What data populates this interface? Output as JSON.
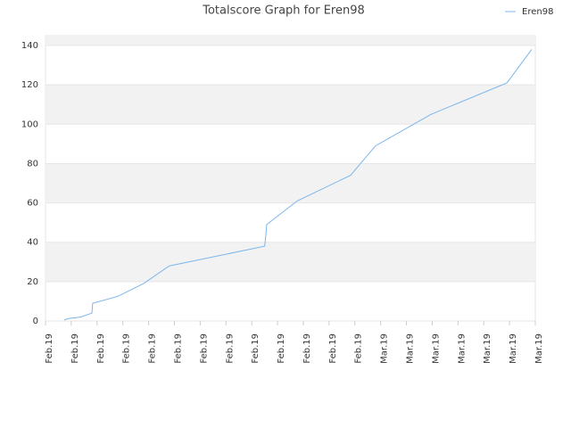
{
  "chart_data": {
    "type": "line",
    "title": "Totalscore Graph for Eren98",
    "x": [
      0.73,
      0.87,
      1.35,
      1.8,
      1.83,
      2.8,
      3.8,
      4.8,
      8.5,
      8.55,
      8.58,
      9.76,
      11.83,
      12.8,
      14.95,
      17.9,
      18.86
    ],
    "series": [
      {
        "name": "Eren98",
        "color": "#7cb5ec",
        "values": [
          0.5,
          1.2,
          2,
          4,
          9,
          12.5,
          19,
          28,
          38,
          44,
          49,
          61,
          74,
          89,
          105,
          121,
          138
        ]
      }
    ],
    "xlim": [
      0,
      19
    ],
    "xticks": [
      {
        "value": 0,
        "label": "Feb.19"
      },
      {
        "value": 1,
        "label": "Feb.19"
      },
      {
        "value": 2,
        "label": "Feb.19"
      },
      {
        "value": 3,
        "label": "Feb.19"
      },
      {
        "value": 4,
        "label": "Feb.19"
      },
      {
        "value": 5,
        "label": "Feb.19"
      },
      {
        "value": 6,
        "label": "Feb.19"
      },
      {
        "value": 7,
        "label": "Feb.19"
      },
      {
        "value": 8,
        "label": "Feb.19"
      },
      {
        "value": 9,
        "label": "Feb.19"
      },
      {
        "value": 10,
        "label": "Feb.19"
      },
      {
        "value": 11,
        "label": "Feb.19"
      },
      {
        "value": 12,
        "label": "Feb.19"
      },
      {
        "value": 13,
        "label": "Mar.19"
      },
      {
        "value": 14,
        "label": "Mar.19"
      },
      {
        "value": 15,
        "label": "Mar.19"
      },
      {
        "value": 16,
        "label": "Mar.19"
      },
      {
        "value": 17,
        "label": "Mar.19"
      },
      {
        "value": 18,
        "label": "Mar.19"
      },
      {
        "value": 19,
        "label": "Mar.19"
      }
    ],
    "ylim": [
      0,
      145
    ],
    "yticks": [
      0,
      20,
      40,
      60,
      80,
      100,
      120,
      140
    ],
    "grid": true,
    "legend": "top-right"
  }
}
